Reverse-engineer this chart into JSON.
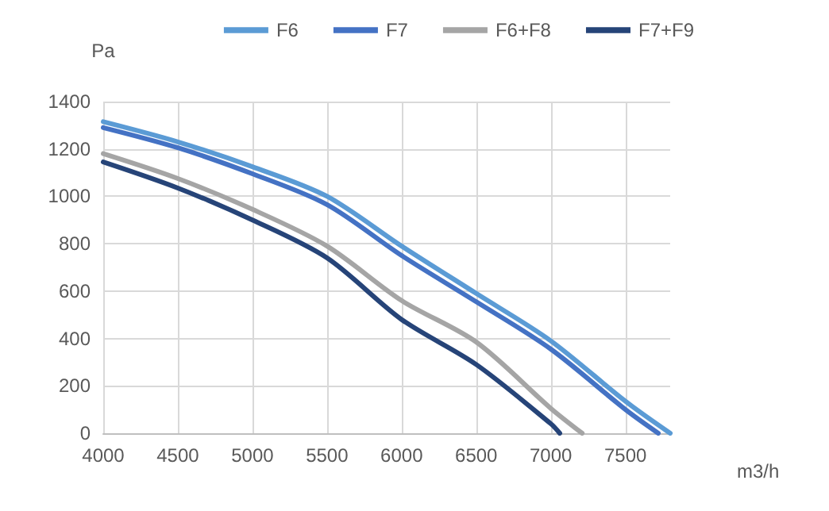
{
  "chart_data": {
    "type": "line",
    "xlabel": "m3/h",
    "ylabel": "Pa",
    "series": [
      {
        "name": "F6",
        "color": "#5b9bd5",
        "x": [
          4000,
          4500,
          5000,
          5500,
          6000,
          6500,
          7000,
          7500,
          7800
        ],
        "values": [
          1315,
          1230,
          1125,
          1000,
          790,
          590,
          390,
          135,
          0
        ]
      },
      {
        "name": "F7",
        "color": "#4472c4",
        "x": [
          4000,
          4500,
          5000,
          5500,
          6000,
          6500,
          7000,
          7500,
          7720
        ],
        "values": [
          1290,
          1205,
          1095,
          965,
          750,
          555,
          355,
          100,
          0
        ]
      },
      {
        "name": "F6+F8",
        "color": "#a5a5a5",
        "x": [
          4000,
          4500,
          5000,
          5500,
          6000,
          6500,
          7000,
          7210
        ],
        "values": [
          1180,
          1075,
          945,
          790,
          560,
          385,
          105,
          0
        ]
      },
      {
        "name": "F7+F9",
        "color": "#264478",
        "x": [
          4000,
          4500,
          5000,
          5500,
          6000,
          6500,
          7000,
          7060
        ],
        "values": [
          1145,
          1035,
          900,
          740,
          480,
          290,
          40,
          0
        ]
      }
    ],
    "xlim": [
      4000,
      7800
    ],
    "xticks": [
      4000,
      4500,
      5000,
      5500,
      6000,
      6500,
      7000,
      7500
    ],
    "ylim": [
      0,
      1400
    ],
    "yticks": [
      0,
      200,
      400,
      600,
      800,
      1000,
      1200,
      1400
    ],
    "grid": true,
    "legend": "top right",
    "marker": "none",
    "line_style": "solid"
  }
}
